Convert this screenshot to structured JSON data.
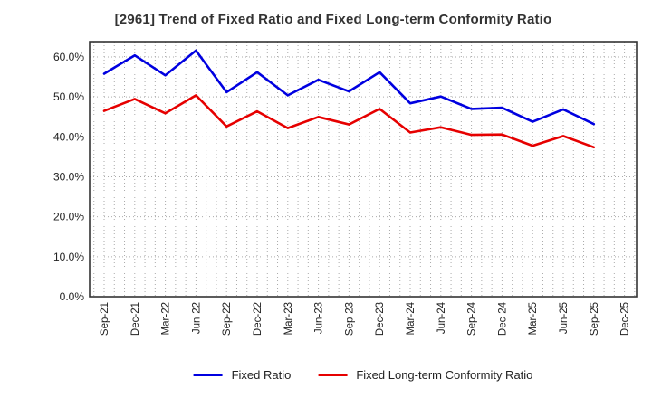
{
  "window": {
    "title": "[2961]  Trend of Fixed Ratio and Fixed Long-term Conformity Ratio"
  },
  "chart_data": {
    "type": "line",
    "title": "[2961]  Trend of Fixed Ratio and Fixed Long-term Conformity Ratio",
    "categories": [
      "Sep-21",
      "Dec-21",
      "Mar-22",
      "Jun-22",
      "Sep-22",
      "Dec-22",
      "Mar-23",
      "Jun-23",
      "Sep-23",
      "Dec-23",
      "Mar-24",
      "Jun-24",
      "Sep-24",
      "Dec-24",
      "Mar-25",
      "Jun-25",
      "Sep-25",
      "Dec-25"
    ],
    "series": [
      {
        "name": "Fixed Ratio",
        "color": "#0000e0",
        "values": [
          55.8,
          60.4,
          55.4,
          61.6,
          51.2,
          56.2,
          50.4,
          54.3,
          51.4,
          56.2,
          48.4,
          50.1,
          47.0,
          47.3,
          43.8,
          46.9,
          43.2
        ]
      },
      {
        "name": "Fixed Long-term Conformity Ratio",
        "color": "#e60000",
        "values": [
          46.5,
          49.5,
          45.9,
          50.4,
          42.6,
          46.4,
          42.2,
          45.0,
          43.1,
          47.0,
          41.1,
          42.4,
          40.5,
          40.6,
          37.8,
          40.2,
          37.4
        ]
      }
    ],
    "xlabel": "",
    "ylabel": "",
    "ylim": [
      0,
      63.8
    ],
    "yticks": [
      0,
      10,
      20,
      30,
      40,
      50,
      60
    ],
    "ytick_labels": [
      "0.0%",
      "10.0%",
      "20.0%",
      "30.0%",
      "40.0%",
      "50.0%",
      "60.0%"
    ],
    "grid": true,
    "minor_vertical_gridlines": "monthly (3 per quarter interval)",
    "legend_position": "bottom-center",
    "axis_color": "#333333",
    "grid_color": "#aaaaaa",
    "label_color": "#222222"
  }
}
